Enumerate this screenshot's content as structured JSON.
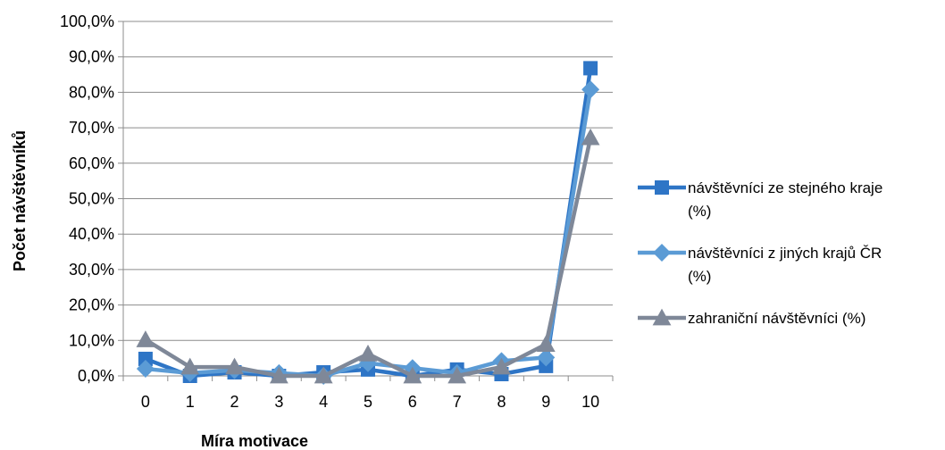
{
  "chart_data": {
    "type": "line",
    "xlabel": "Míra motivace",
    "ylabel": "Počet návštěvníků",
    "categories": [
      "0",
      "1",
      "2",
      "3",
      "4",
      "5",
      "6",
      "7",
      "8",
      "9",
      "10"
    ],
    "ylim": [
      0,
      100
    ],
    "y_ticks": [
      "0,0%",
      "10,0%",
      "20,0%",
      "30,0%",
      "40,0%",
      "50,0%",
      "60,0%",
      "70,0%",
      "80,0%",
      "90,0%",
      "100,0%"
    ],
    "grid": "horizontal",
    "legend_position": "right",
    "series": [
      {
        "name_lines": [
          "návštěvníci ze stejného kraje",
          "(%)"
        ],
        "color": "#2e75c6",
        "marker": "square",
        "values": [
          4.8,
          0.0,
          1.0,
          0.0,
          1.0,
          1.8,
          0.0,
          1.8,
          0.5,
          2.8,
          86.8
        ]
      },
      {
        "name_lines": [
          "návštěvníci z jiných krajů ČR",
          "(%)"
        ],
        "color": "#5b9bd5",
        "marker": "diamond",
        "values": [
          2.0,
          0.8,
          1.6,
          0.8,
          0.0,
          3.6,
          2.2,
          0.8,
          4.2,
          5.2,
          80.8
        ]
      },
      {
        "name_lines": [
          "zahraniční návštěvníci (%)"
        ],
        "color": "#7f8898",
        "marker": "triangle",
        "values": [
          10.2,
          2.5,
          2.5,
          0.0,
          0.0,
          6.2,
          0.0,
          0.0,
          2.5,
          8.9,
          67.2
        ]
      }
    ]
  }
}
